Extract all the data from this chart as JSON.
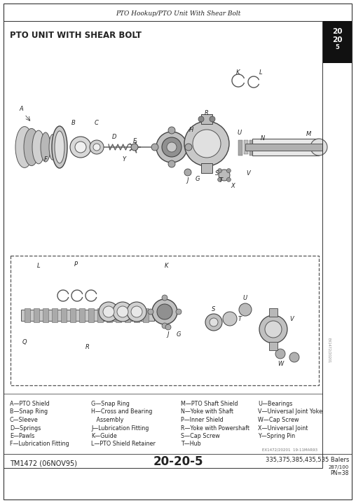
{
  "page_title": "PTO Hookup/PTO Unit With Shear Bolt",
  "section_title": "PTO UNIT WITH SHEAR BOLT",
  "page_number": "20-20-5",
  "doc_number": "TM1472 (06NOV95)",
  "machine": "335,375,385,435,535 Balers",
  "pn": "PN=38",
  "ref_code": "EX1472/20201  19-11MAR93",
  "sub_ref": "287/100",
  "section_tab_line1": "20",
  "section_tab_line2": "20",
  "section_tab_line3": "5",
  "legend_col1": [
    "A—PTO Shield",
    "B—Snap Ring",
    "C—Sleeve",
    "D—Springs",
    "E—Pawls",
    "F—Lubrication Fitting"
  ],
  "legend_col2": [
    "G—Snap Ring",
    "H—Cross and Bearing",
    "   Assembly",
    "J—Lubrication Fitting",
    "K—Guide",
    "L—PTO Shield Retainer"
  ],
  "legend_col3": [
    "M—PTO Shaft Shield",
    "N—Yoke with Shaft",
    "P—Inner Shield",
    "R—Yoke with Powershaft",
    "S—Cap Screw",
    "T—Hub"
  ],
  "legend_col4": [
    "U—Bearings",
    "V—Universal Joint Yoke",
    "W—Cap Screw",
    "X—Universal Joint",
    "Y—Spring Pin",
    ""
  ],
  "bg_color": "#ffffff",
  "text_color": "#222222",
  "border_color": "#333333",
  "tab_bg": "#111111",
  "tab_text": "#ffffff"
}
